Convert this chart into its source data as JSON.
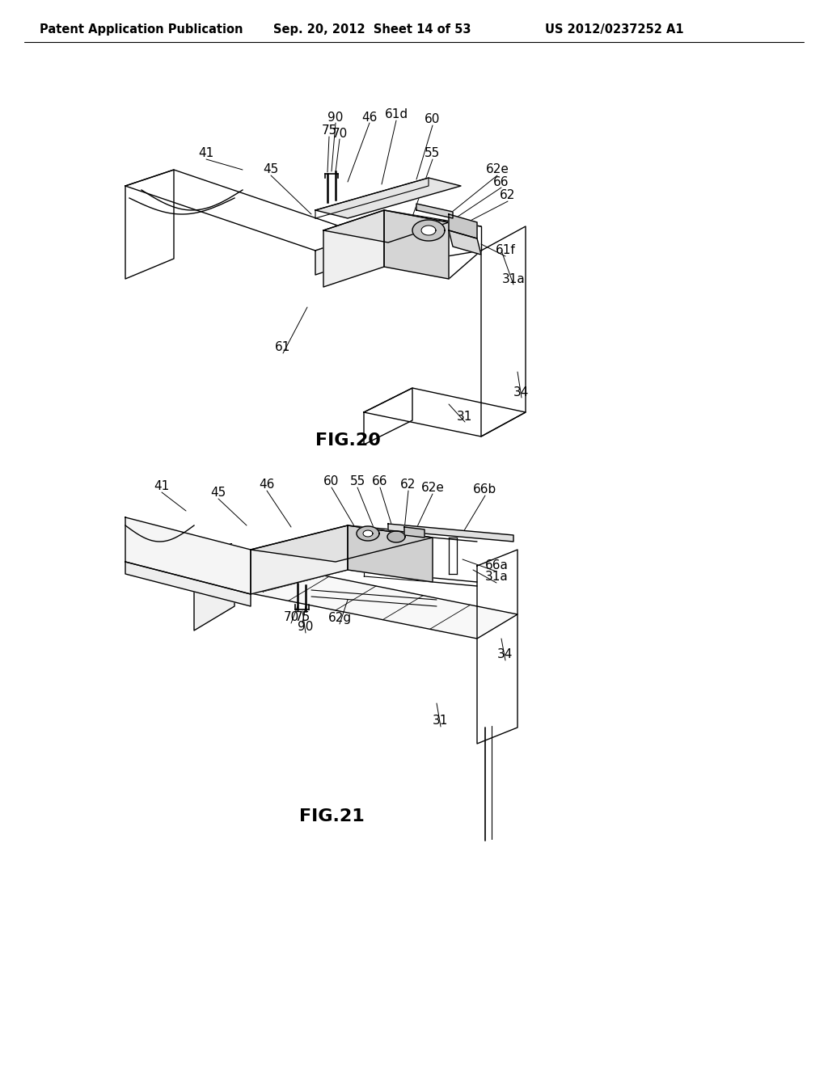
{
  "background_color": "#ffffff",
  "header_left": "Patent Application Publication",
  "header_center": "Sep. 20, 2012  Sheet 14 of 53",
  "header_right": "US 2012/0237252 A1",
  "fig20_label": "FIG.20",
  "fig21_label": "FIG.21",
  "line_color": "#000000",
  "text_color": "#000000",
  "header_fontsize": 10.5,
  "label_fontsize": 11,
  "fig_label_fontsize": 16
}
